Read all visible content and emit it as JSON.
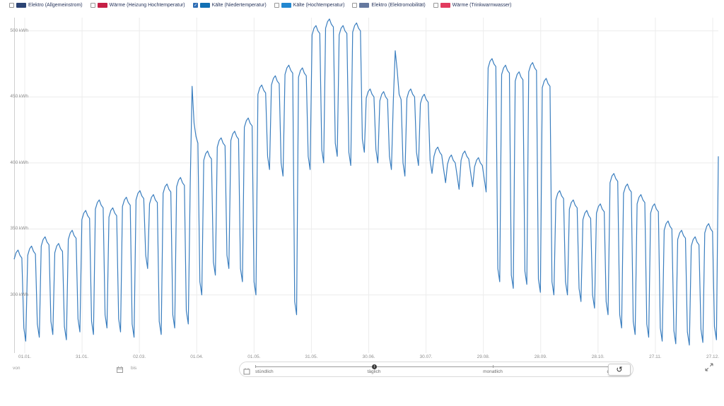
{
  "legend": {
    "items": [
      {
        "label": "Elektro (Allgemeinstrom)",
        "color": "#2c4474",
        "checked": false
      },
      {
        "label": "Wärme (Heizung Hochtemperatur)",
        "color": "#c51f45",
        "checked": false
      },
      {
        "label": "Kälte (Niedertemperatur)",
        "color": "#1270b4",
        "checked": true
      },
      {
        "label": "Kälte (Hochtemperatur)",
        "color": "#2287d0",
        "checked": false
      },
      {
        "label": "Elektro (Elektromobilität)",
        "color": "#65799f",
        "checked": false
      },
      {
        "label": "Wärme (Trinkwarmwasser)",
        "color": "#e23a5e",
        "checked": false
      }
    ]
  },
  "chart_data": {
    "type": "line",
    "title": "",
    "xlabel": "",
    "ylabel": "kWh",
    "grid": true,
    "legend_position": "top",
    "ylim": [
      256,
      510
    ],
    "y_ticks": [
      500,
      450,
      400,
      350,
      300
    ],
    "y_tick_labels": [
      "500 kWh",
      "450 kWh",
      "400 kWh",
      "350 kWh",
      "300 kWh"
    ],
    "x_tick_labels": [
      "01.01.",
      "31.01.",
      "02.03.",
      "01.04.",
      "01.05.",
      "31.05.",
      "30.06.",
      "30.07.",
      "29.08.",
      "28.09.",
      "28.10.",
      "27.11.",
      "27.12."
    ],
    "series": [
      {
        "name": "Kälte (Niedertemperatur)",
        "unit": "kWh",
        "color": "#3a7ebf",
        "values": [
          327,
          332,
          334,
          330,
          328,
          275,
          265,
          330,
          335,
          337,
          333,
          331,
          278,
          268,
          337,
          342,
          344,
          340,
          338,
          280,
          270,
          332,
          337,
          339,
          335,
          333,
          276,
          266,
          342,
          347,
          349,
          345,
          343,
          282,
          272,
          357,
          362,
          364,
          360,
          358,
          280,
          270,
          365,
          370,
          372,
          368,
          366,
          285,
          275,
          359,
          364,
          366,
          362,
          360,
          282,
          272,
          367,
          372,
          374,
          370,
          368,
          278,
          268,
          372,
          377,
          379,
          375,
          373,
          330,
          320,
          369,
          374,
          376,
          372,
          370,
          280,
          270,
          377,
          382,
          384,
          380,
          378,
          285,
          275,
          382,
          387,
          389,
          385,
          383,
          288,
          278,
          382,
          458,
          430,
          420,
          415,
          310,
          300,
          402,
          407,
          409,
          405,
          403,
          325,
          315,
          412,
          417,
          419,
          415,
          413,
          330,
          320,
          417,
          422,
          424,
          420,
          418,
          320,
          310,
          427,
          432,
          434,
          430,
          428,
          310,
          300,
          452,
          457,
          459,
          455,
          453,
          405,
          395,
          459,
          464,
          466,
          462,
          460,
          400,
          390,
          467,
          472,
          474,
          470,
          468,
          295,
          285,
          465,
          470,
          472,
          468,
          466,
          405,
          395,
          497,
          502,
          504,
          500,
          498,
          410,
          400,
          502,
          507,
          509,
          505,
          503,
          415,
          405,
          497,
          502,
          504,
          500,
          498,
          408,
          398,
          499,
          504,
          506,
          502,
          500,
          418,
          408,
          449,
          454,
          456,
          452,
          450,
          410,
          400,
          447,
          452,
          454,
          450,
          448,
          405,
          395,
          447,
          485,
          470,
          452,
          448,
          400,
          390,
          449,
          454,
          456,
          452,
          450,
          408,
          398,
          445,
          450,
          452,
          448,
          446,
          402,
          392,
          405,
          410,
          412,
          408,
          406,
          395,
          385,
          399,
          404,
          406,
          402,
          400,
          390,
          380,
          402,
          407,
          409,
          405,
          403,
          392,
          382,
          397,
          402,
          404,
          400,
          398,
          388,
          378,
          472,
          477,
          479,
          475,
          473,
          320,
          310,
          467,
          472,
          474,
          470,
          468,
          315,
          305,
          462,
          467,
          469,
          465,
          463,
          318,
          308,
          469,
          474,
          476,
          472,
          470,
          312,
          302,
          457,
          462,
          464,
          460,
          458,
          310,
          300,
          372,
          377,
          379,
          375,
          373,
          310,
          300,
          365,
          370,
          372,
          368,
          366,
          305,
          295,
          357,
          362,
          364,
          360,
          358,
          300,
          290,
          362,
          367,
          369,
          365,
          363,
          295,
          285,
          385,
          390,
          392,
          388,
          386,
          285,
          275,
          377,
          382,
          384,
          380,
          378,
          280,
          270,
          369,
          374,
          376,
          372,
          370,
          278,
          268,
          362,
          367,
          369,
          365,
          363,
          275,
          265,
          349,
          354,
          356,
          352,
          350,
          273,
          263,
          342,
          347,
          349,
          345,
          343,
          272,
          262,
          337,
          342,
          344,
          340,
          338,
          274,
          264,
          347,
          352,
          354,
          350,
          348,
          276,
          266,
          405
        ]
      }
    ]
  },
  "controls": {
    "from_label": "von",
    "to_label": "bis",
    "interval_slider": {
      "display_labels": [
        "stündlich",
        "täglich",
        "monatlich",
        "quar"
      ],
      "selected": "täglich",
      "selected_index": 1
    },
    "reset_glyph": "↺"
  },
  "icons": [
    "calendar-icon",
    "interval-calendar-icon",
    "reset-icon",
    "expand-icon",
    "checkbox-icon"
  ]
}
